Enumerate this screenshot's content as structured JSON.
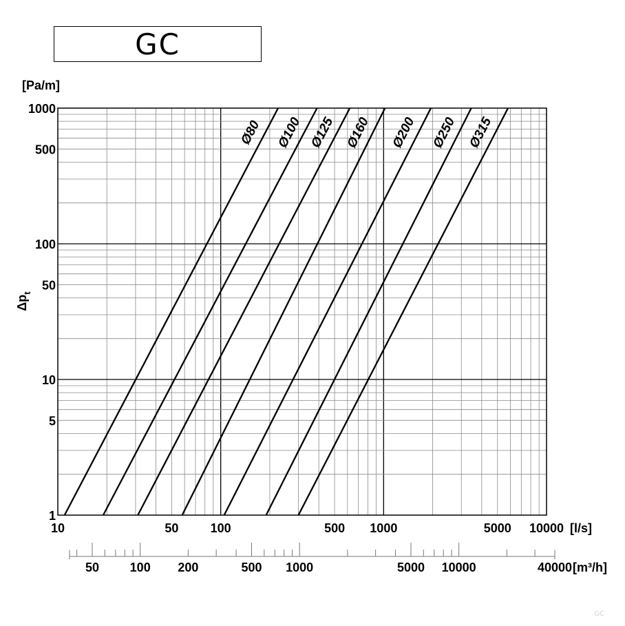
{
  "title": "GC",
  "watermark": "GC",
  "chart_data": {
    "type": "line",
    "xscale": "log",
    "yscale": "log",
    "xlim": [
      10,
      10000
    ],
    "ylim": [
      1,
      1000
    ],
    "xunit": "[l/s]",
    "yunit": "[Pa/m]",
    "ylabel_main": "Δp",
    "ylabel_sub": "t",
    "x_ticks": [
      {
        "v": 10,
        "label": "10"
      },
      {
        "v": 50,
        "label": "50"
      },
      {
        "v": 100,
        "label": "100"
      },
      {
        "v": 500,
        "label": "500"
      },
      {
        "v": 1000,
        "label": "1000"
      },
      {
        "v": 5000,
        "label": "5000"
      },
      {
        "v": 10000,
        "label": "10000"
      }
    ],
    "y_ticks": [
      {
        "v": 1,
        "label": "1"
      },
      {
        "v": 5,
        "label": "5"
      },
      {
        "v": 10,
        "label": "10"
      },
      {
        "v": 50,
        "label": "50"
      },
      {
        "v": 100,
        "label": "100"
      },
      {
        "v": 500,
        "label": "500"
      },
      {
        "v": 1000,
        "label": "1000"
      }
    ],
    "secondary_axis": {
      "unit": "[m³/h]",
      "lim": [
        36,
        40000
      ],
      "ticks": [
        {
          "v": 50,
          "label": "50"
        },
        {
          "v": 100,
          "label": "100"
        },
        {
          "v": 200,
          "label": "200"
        },
        {
          "v": 500,
          "label": "500"
        },
        {
          "v": 1000,
          "label": "1000"
        },
        {
          "v": 5000,
          "label": "5000"
        },
        {
          "v": 10000,
          "label": "10000"
        },
        {
          "v": 40000,
          "label": "40000"
        }
      ]
    },
    "series": [
      {
        "name": "Ø80",
        "points": [
          [
            11,
            1
          ],
          [
            225,
            1000
          ]
        ]
      },
      {
        "name": "Ø100",
        "points": [
          [
            19,
            1
          ],
          [
            390,
            1000
          ]
        ]
      },
      {
        "name": "Ø125",
        "points": [
          [
            31,
            1
          ],
          [
            620,
            1000
          ]
        ]
      },
      {
        "name": "Ø160",
        "points": [
          [
            58,
            1
          ],
          [
            1020,
            1000
          ]
        ]
      },
      {
        "name": "Ø200",
        "points": [
          [
            105,
            1
          ],
          [
            1950,
            1000
          ]
        ]
      },
      {
        "name": "Ø250",
        "points": [
          [
            190,
            1
          ],
          [
            3450,
            1000
          ]
        ]
      },
      {
        "name": "Ø315",
        "points": [
          [
            300,
            1
          ],
          [
            5800,
            1000
          ]
        ]
      }
    ]
  }
}
